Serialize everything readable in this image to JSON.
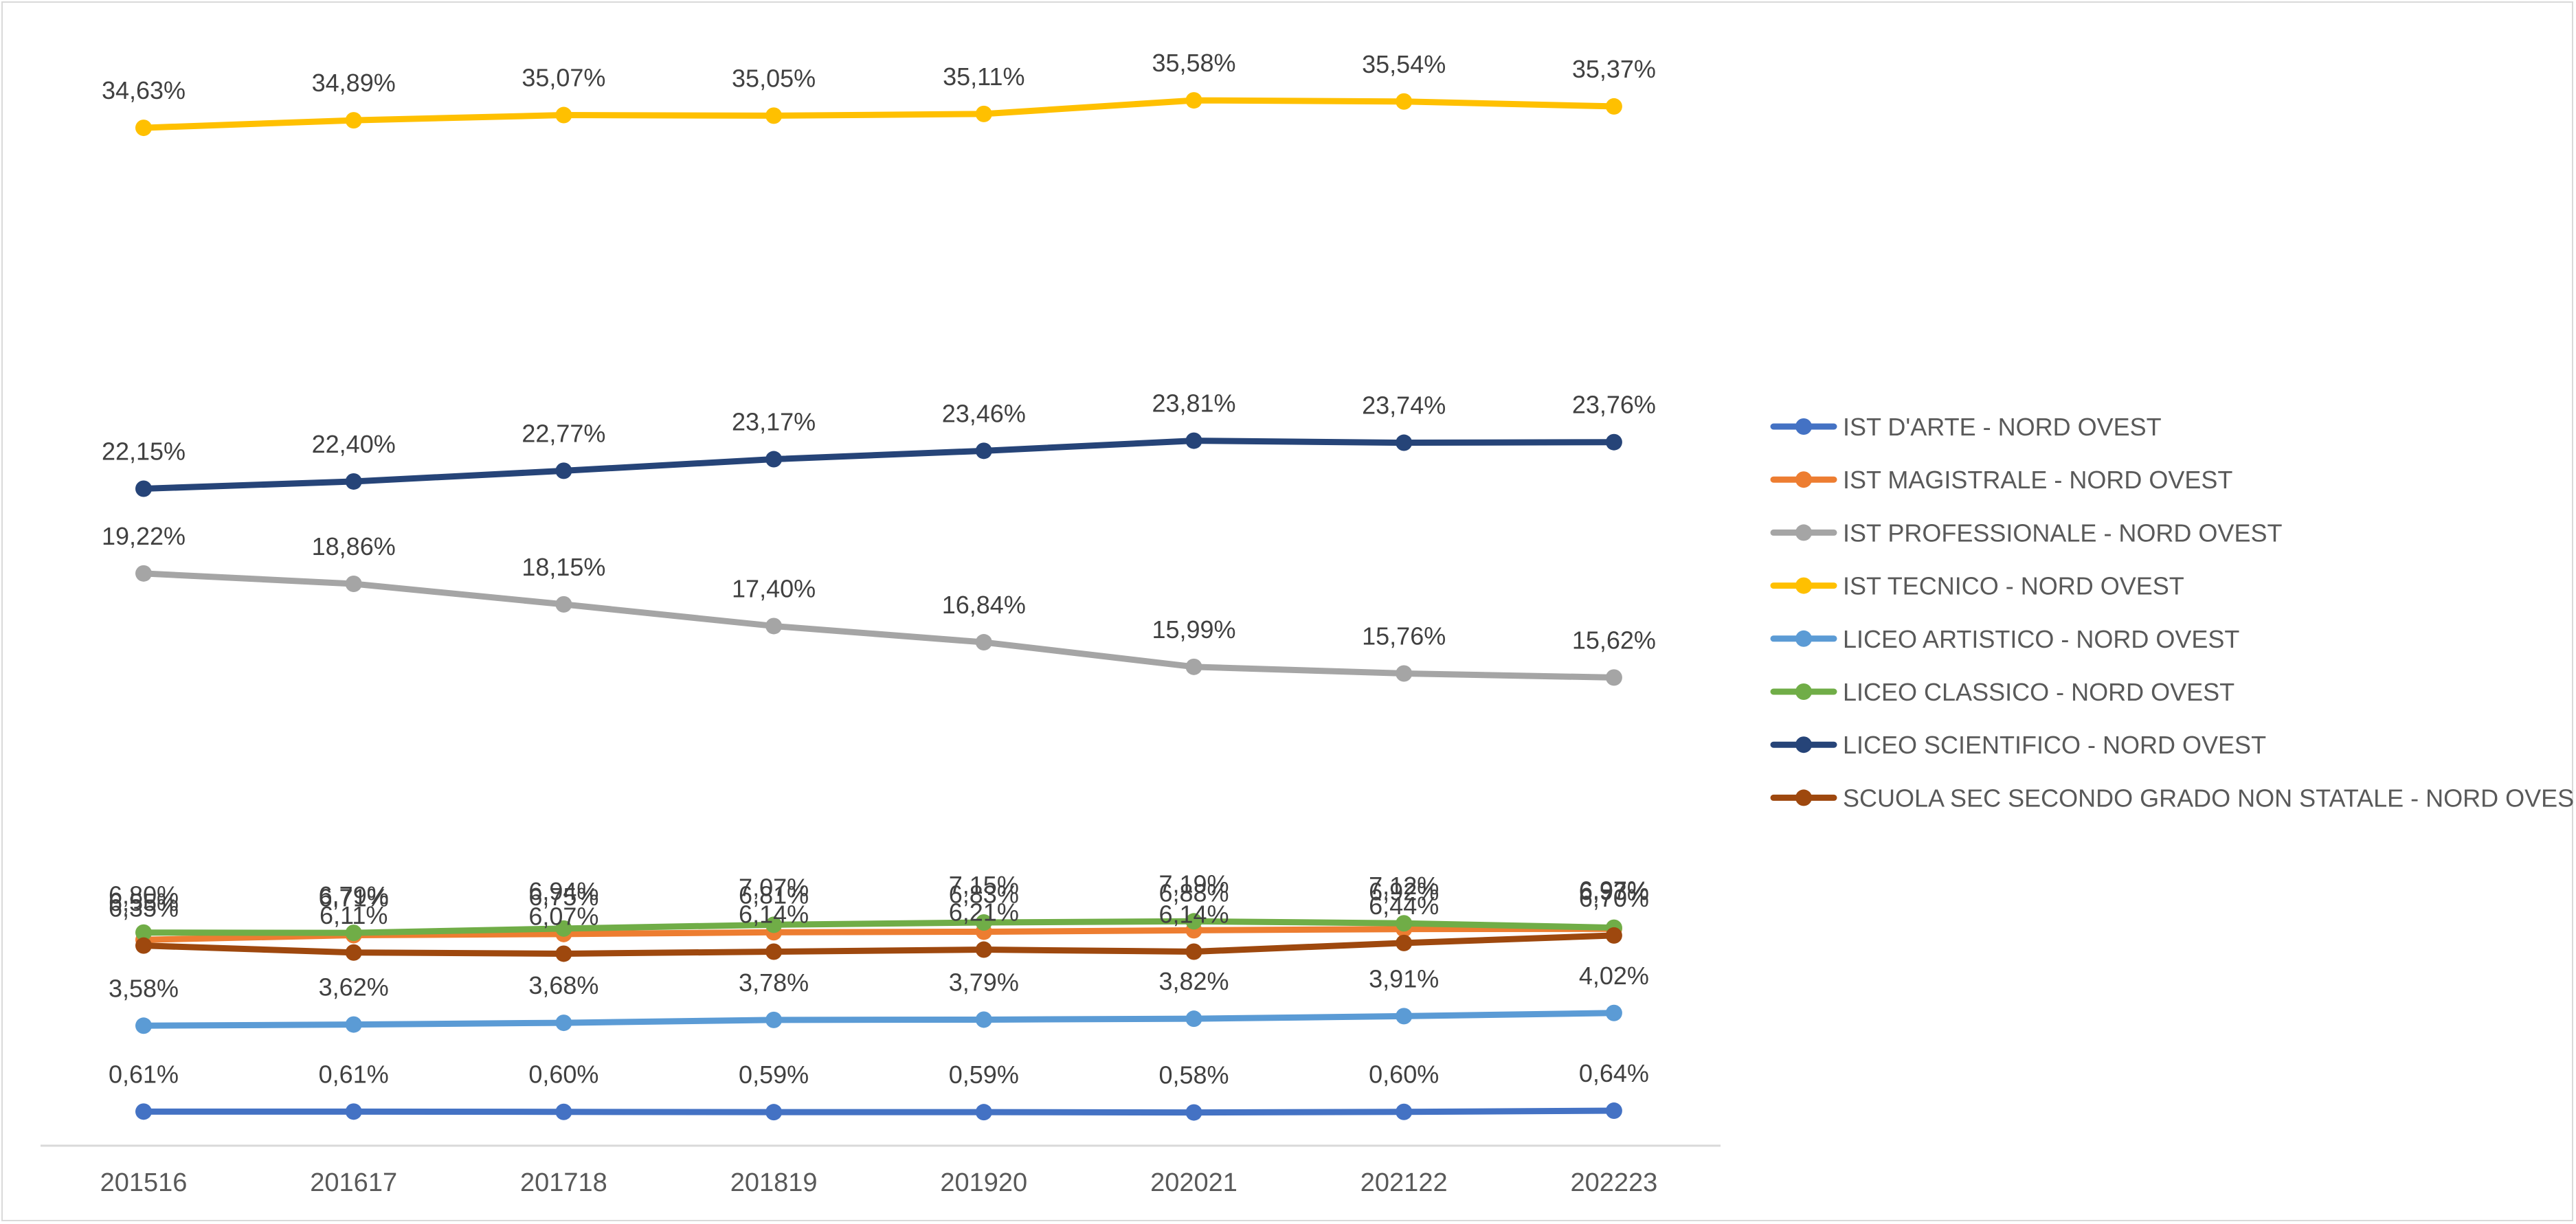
{
  "chart_data": {
    "type": "line",
    "title": "",
    "xlabel": "",
    "ylabel": "",
    "categories": [
      "201516",
      "201617",
      "201718",
      "201819",
      "201920",
      "202021",
      "202122",
      "202223"
    ],
    "ylim": [
      0,
      36.5
    ],
    "grid": false,
    "legend_position": "right",
    "series": [
      {
        "name": "IST D'ARTE - NORD OVEST",
        "color": "#4472C4",
        "values": [
          0.61,
          0.61,
          0.6,
          0.59,
          0.59,
          0.58,
          0.6,
          0.64
        ],
        "labels": [
          "0,61%",
          "0,61%",
          "0,60%",
          "0,59%",
          "0,59%",
          "0,58%",
          "0,60%",
          "0,64%"
        ]
      },
      {
        "name": "IST MAGISTRALE - NORD OVEST",
        "color": "#ED7D31",
        "values": [
          6.55,
          6.71,
          6.75,
          6.81,
          6.83,
          6.88,
          6.92,
          6.93
        ],
        "labels": [
          "6,55%",
          "6,71%",
          "6,75%",
          "6,81%",
          "6,83%",
          "6,88%",
          "6,92%",
          "6,93%"
        ]
      },
      {
        "name": "IST PROFESSIONALE - NORD OVEST",
        "color": "#A5A5A5",
        "values": [
          19.22,
          18.86,
          18.15,
          17.4,
          16.84,
          15.99,
          15.76,
          15.62
        ],
        "labels": [
          "19,22%",
          "18,86%",
          "18,15%",
          "17,40%",
          "16,84%",
          "15,99%",
          "15,76%",
          "15,62%"
        ]
      },
      {
        "name": "IST TECNICO - NORD OVEST",
        "color": "#FFC000",
        "values": [
          34.63,
          34.89,
          35.07,
          35.05,
          35.11,
          35.58,
          35.54,
          35.37
        ],
        "labels": [
          "34,63%",
          "34,89%",
          "35,07%",
          "35,05%",
          "35,11%",
          "35,58%",
          "35,54%",
          "35,37%"
        ]
      },
      {
        "name": "LICEO ARTISTICO - NORD OVEST",
        "color": "#5B9BD5",
        "values": [
          3.58,
          3.62,
          3.68,
          3.78,
          3.79,
          3.82,
          3.91,
          4.02
        ],
        "labels": [
          "3,58%",
          "3,62%",
          "3,68%",
          "3,78%",
          "3,79%",
          "3,82%",
          "3,91%",
          "4,02%"
        ]
      },
      {
        "name": "LICEO CLASSICO - NORD OVEST",
        "color": "#70AD47",
        "values": [
          6.8,
          6.79,
          6.94,
          7.07,
          7.15,
          7.19,
          7.12,
          6.97
        ],
        "labels": [
          "6,80%",
          "6,79%",
          "6,94%",
          "7,07%",
          "7,15%",
          "7,19%",
          "7,12%",
          "6,97%"
        ]
      },
      {
        "name": "LICEO SCIENTIFICO - NORD OVEST",
        "color": "#264478",
        "values": [
          22.15,
          22.4,
          22.77,
          23.17,
          23.46,
          23.81,
          23.74,
          23.76
        ],
        "labels": [
          "22,15%",
          "22,40%",
          "22,77%",
          "23,17%",
          "23,46%",
          "23,81%",
          "23,74%",
          "23,76%"
        ]
      },
      {
        "name": "SCUOLA SEC SECONDO GRADO NON STATALE - NORD OVEST",
        "color": "#9E480E",
        "values": [
          6.35,
          6.11,
          6.07,
          6.14,
          6.21,
          6.14,
          6.44,
          6.7
        ],
        "labels": [
          "6,35%",
          "6,11%",
          "6,07%",
          "6,14%",
          "6,21%",
          "6,14%",
          "6,44%",
          "6,70%"
        ]
      }
    ]
  }
}
